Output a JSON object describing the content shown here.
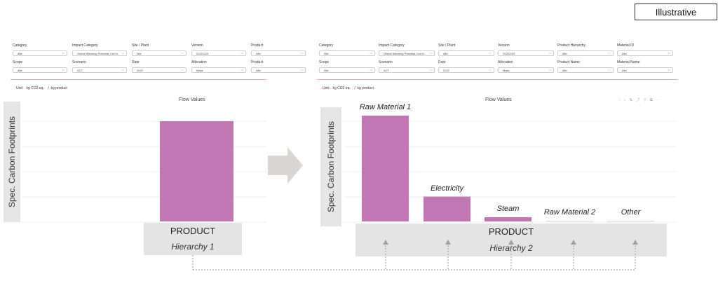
{
  "badge": "Illustrative",
  "left": {
    "filters": [
      {
        "label": "Category",
        "value": "Alle"
      },
      {
        "label": "Impact Category",
        "value": "Global Warming Potential, incl bi..."
      },
      {
        "label": "Site / Plant",
        "value": "Alle"
      },
      {
        "label": "Version",
        "value": "20221119"
      },
      {
        "label": "Product",
        "value": "Alle"
      },
      {
        "label": "Scope",
        "value": "Alle"
      },
      {
        "label": "Scenario",
        "value": "ACT"
      },
      {
        "label": "Date",
        "value": "2022"
      },
      {
        "label": "Allocation",
        "value": "Mass"
      },
      {
        "label": "Product",
        "value": "Alle"
      }
    ],
    "unit_prefix": "Unit:",
    "unit_value": "kg CO2 eq.",
    "unit_sep": "/",
    "unit_per": "kg product",
    "chart_title": "Flow Values",
    "ylabel": "Spec. Carbon Footprints",
    "x_title": "PRODUCT",
    "x_sub": "Hierarchy 1"
  },
  "right": {
    "filters": [
      {
        "label": "Category",
        "value": "Alle"
      },
      {
        "label": "Impact Category",
        "value": "Global Warming Potential, incl bi..."
      },
      {
        "label": "Site / Plant",
        "value": "Alle"
      },
      {
        "label": "Version",
        "value": "20221119"
      },
      {
        "label": "Product Hierarchy",
        "value": "Alle"
      },
      {
        "label": "Material ID",
        "value": "Alle"
      },
      {
        "label": "Scope",
        "value": "Alle"
      },
      {
        "label": "Scenario",
        "value": "ACT"
      },
      {
        "label": "Date",
        "value": "2022"
      },
      {
        "label": "Allocation",
        "value": "Mass"
      },
      {
        "label": "Product Name",
        "value": "Alle"
      },
      {
        "label": "Material Name",
        "value": "Alle"
      }
    ],
    "unit_prefix": "Unit:",
    "unit_value": "kg CO2 eq.",
    "unit_sep": "/",
    "unit_per": "kg product",
    "chart_title": "Flow Values",
    "ylabel": "Spec. Carbon Footprints",
    "x_title": "PRODUCT",
    "x_sub": "Hierarchy 2",
    "toolbar": "↑ ↓ ⇅ ⤴ ▽ ⧉ ⋯"
  },
  "chart_data": [
    {
      "type": "bar",
      "title": "Flow Values",
      "ylabel": "Spec. Carbon Footprints",
      "xlabel": "PRODUCT Hierarchy 1",
      "categories": [
        "PRODUCT"
      ],
      "values": [
        100
      ],
      "color": "#c277b5"
    },
    {
      "type": "bar",
      "title": "Flow Values",
      "ylabel": "Spec. Carbon Footprints",
      "xlabel": "PRODUCT Hierarchy 2",
      "categories": [
        "Raw Material 1",
        "Electricity",
        "Steam",
        "Raw Material 2",
        "Other"
      ],
      "values": [
        100,
        23.5,
        4,
        0.5,
        0.3
      ],
      "color": "#c277b5"
    }
  ],
  "colors": {
    "bar": "#c277b5",
    "accent_line": "#e6a9d3",
    "arrow": "#d9d6d3",
    "connector": "#999999"
  }
}
